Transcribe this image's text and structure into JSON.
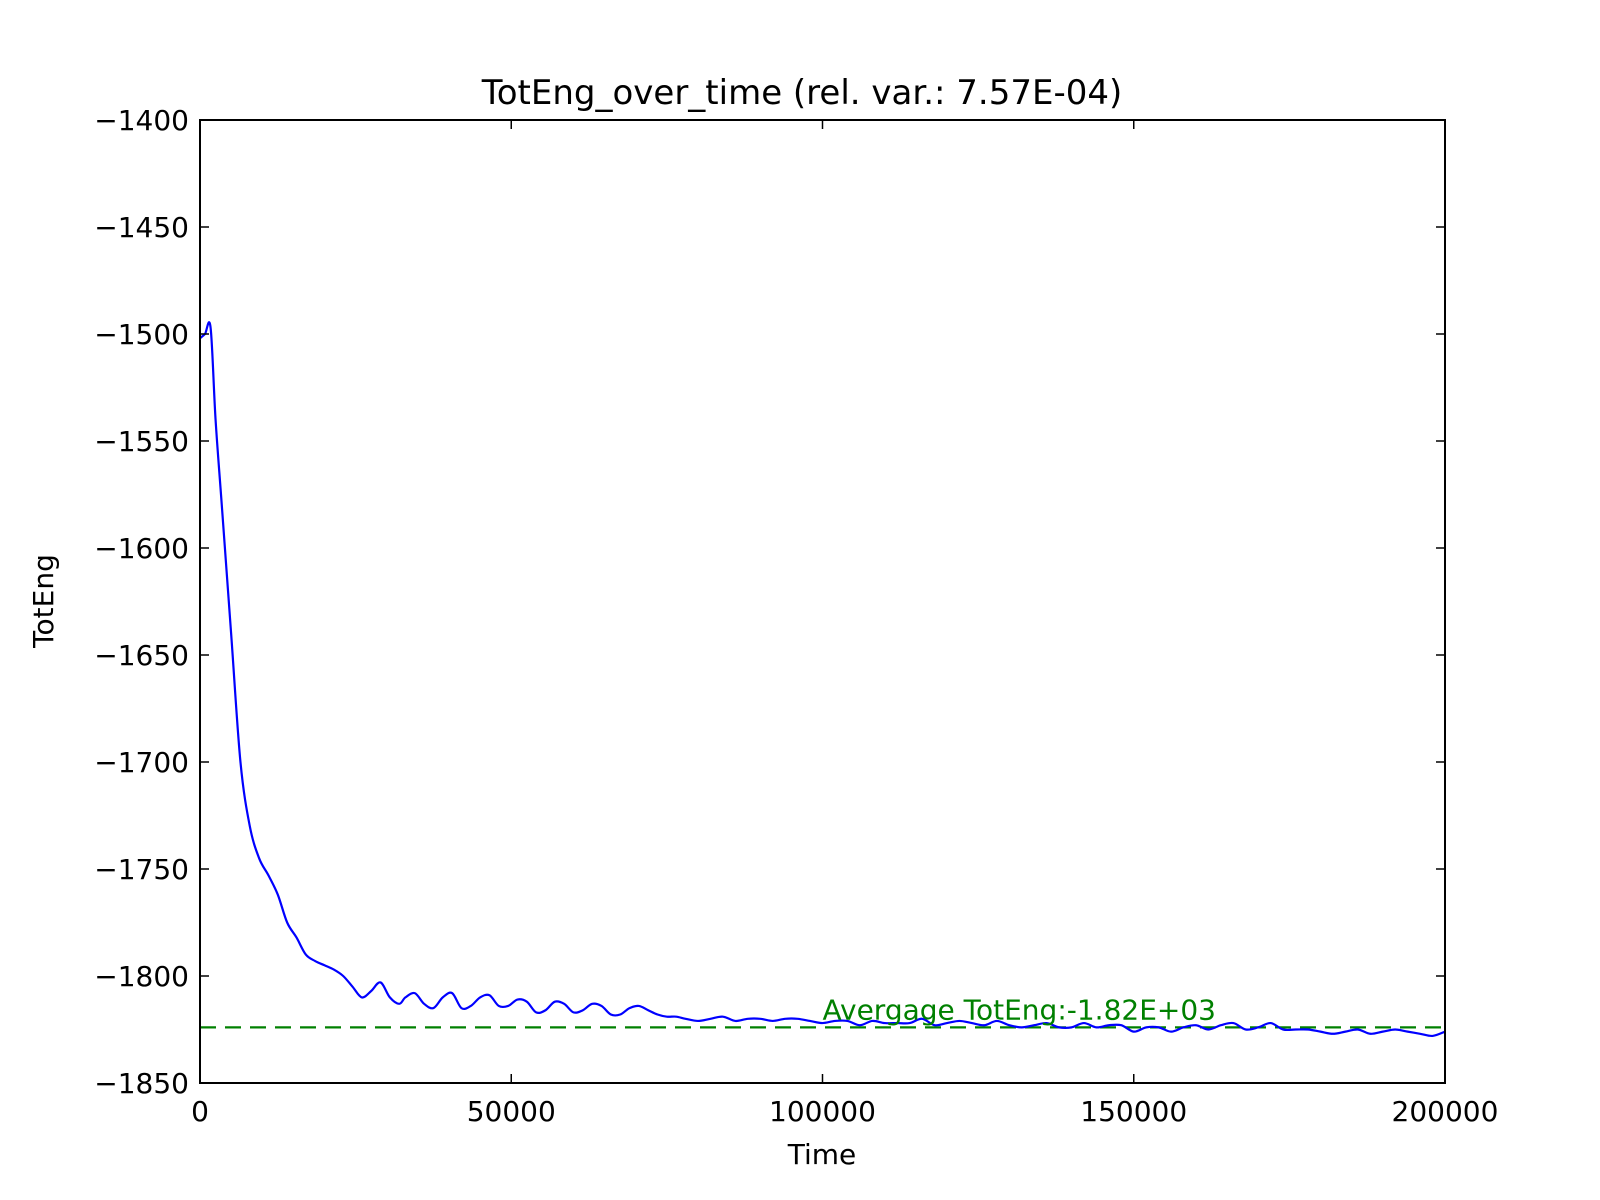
{
  "chart_data": {
    "type": "line",
    "title": "TotEng_over_time (rel. var.: 7.57E-04)",
    "xlabel": "Time",
    "ylabel": "TotEng",
    "xlim": [
      0,
      200000
    ],
    "ylim": [
      -1850,
      -1400
    ],
    "x_ticks": [
      0,
      50000,
      100000,
      150000,
      200000
    ],
    "x_tick_labels": [
      "0",
      "50000",
      "100000",
      "150000",
      "200000"
    ],
    "y_ticks": [
      -1400,
      -1450,
      -1500,
      -1550,
      -1600,
      -1650,
      -1700,
      -1750,
      -1800,
      -1850
    ],
    "y_tick_labels": [
      "−1400",
      "−1450",
      "−1500",
      "−1550",
      "−1600",
      "−1650",
      "−1700",
      "−1750",
      "−1800",
      "−1850"
    ],
    "grid": false,
    "series": [
      {
        "color": "#0000ff",
        "x": [
          0,
          800,
          1700,
          2500,
          3500,
          5000,
          6500,
          8000,
          9500,
          11000,
          12500,
          14000,
          15500,
          17000,
          18500,
          20000,
          21500,
          23000,
          24500,
          26000,
          27500,
          29000,
          30500,
          32000,
          33000,
          34500,
          36000,
          37500,
          39000,
          40500,
          42000,
          43500,
          45000,
          46500,
          48000,
          49500,
          51000,
          52500,
          54000,
          55500,
          57000,
          58500,
          60000,
          61500,
          63000,
          64500,
          66000,
          67500,
          69000,
          70500,
          72000,
          73500,
          75000,
          76500,
          78000,
          80000,
          82000,
          84000,
          86000,
          88000,
          90000,
          92000,
          94000,
          96000,
          98000,
          100000,
          102000,
          104000,
          106000,
          108000,
          110000,
          112000,
          114000,
          116000,
          118000,
          120000,
          122000,
          124000,
          126000,
          128000,
          130000,
          132000,
          134000,
          136000,
          138000,
          140000,
          142000,
          144000,
          146000,
          148000,
          150000,
          152000,
          154000,
          156000,
          158000,
          160000,
          162000,
          164000,
          166000,
          168000,
          170000,
          172000,
          174000,
          176000,
          178000,
          180000,
          182000,
          184000,
          186000,
          188000,
          190000,
          192000,
          194000,
          196000,
          198000,
          200000
        ],
        "y": [
          -1502,
          -1500,
          -1497,
          -1540,
          -1580,
          -1640,
          -1700,
          -1730,
          -1745,
          -1753,
          -1762,
          -1775,
          -1782,
          -1790,
          -1793,
          -1795,
          -1797,
          -1800,
          -1805,
          -1810,
          -1807,
          -1803,
          -1810,
          -1813,
          -1810,
          -1808,
          -1813,
          -1815,
          -1810,
          -1808,
          -1815,
          -1814,
          -1810,
          -1809,
          -1814,
          -1814,
          -1811,
          -1812,
          -1817,
          -1816,
          -1812,
          -1813,
          -1817,
          -1816,
          -1813,
          -1814,
          -1818,
          -1818,
          -1815,
          -1814,
          -1816,
          -1818,
          -1819,
          -1819,
          -1820,
          -1821,
          -1820,
          -1819,
          -1821,
          -1820,
          -1820,
          -1821,
          -1820,
          -1820,
          -1821,
          -1822,
          -1821,
          -1821,
          -1823,
          -1821,
          -1822,
          -1822,
          -1822,
          -1820,
          -1823,
          -1822,
          -1821,
          -1822,
          -1823,
          -1821,
          -1823,
          -1824,
          -1823,
          -1822,
          -1824,
          -1824,
          -1822,
          -1824,
          -1823,
          -1823,
          -1826,
          -1824,
          -1824,
          -1826,
          -1824,
          -1823,
          -1825,
          -1823,
          -1822,
          -1825,
          -1824,
          -1822,
          -1825,
          -1825,
          -1825,
          -1826,
          -1827,
          -1826,
          -1825,
          -1827,
          -1826,
          -1825,
          -1826,
          -1827,
          -1828,
          -1826
        ]
      }
    ],
    "hlines": [
      {
        "y": -1824,
        "style": "dashed",
        "color": "#008000"
      }
    ],
    "annotations": [
      {
        "text": "Avergage TotEng:-1.82E+03",
        "x": 100000,
        "y": -1824,
        "color": "#008000"
      }
    ]
  }
}
